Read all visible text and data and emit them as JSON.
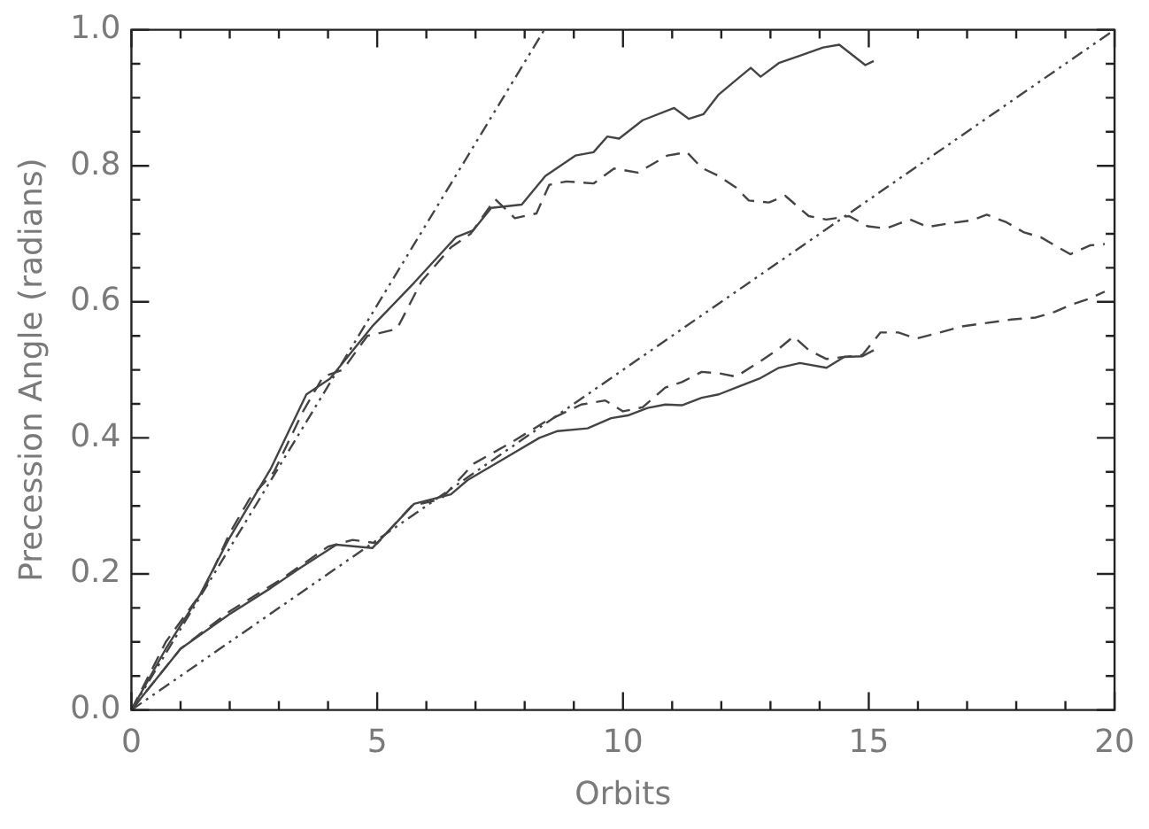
{
  "chart_data": {
    "type": "line",
    "xlabel": "Orbits",
    "ylabel": "Precession Angle (radians)",
    "xlim": [
      0,
      20
    ],
    "ylim": [
      0,
      1.0
    ],
    "xticks": [
      0,
      {
        "value": 1,
        "label": null
      },
      {
        "value": 2,
        "label": null
      },
      {
        "value": 3,
        "label": null
      },
      {
        "value": 4,
        "label": null
      },
      5,
      {
        "value": 6,
        "label": null
      },
      {
        "value": 7,
        "label": null
      },
      {
        "value": 8,
        "label": null
      },
      {
        "value": 9,
        "label": null
      },
      10,
      {
        "value": 11,
        "label": null
      },
      {
        "value": 12,
        "label": null
      },
      {
        "value": 13,
        "label": null
      },
      {
        "value": 14,
        "label": null
      },
      15,
      {
        "value": 16,
        "label": null
      },
      {
        "value": 17,
        "label": null
      },
      {
        "value": 18,
        "label": null
      },
      {
        "value": 19,
        "label": null
      },
      20
    ],
    "yticks": [
      {
        "value": 0,
        "label": "0.0"
      },
      {
        "value": 0.05,
        "label": null
      },
      {
        "value": 0.1,
        "label": null
      },
      {
        "value": 0.15,
        "label": null
      },
      {
        "value": 0.2,
        "label": "0.2"
      },
      {
        "value": 0.25,
        "label": null
      },
      {
        "value": 0.3,
        "label": null
      },
      {
        "value": 0.35,
        "label": null
      },
      {
        "value": 0.4,
        "label": "0.4"
      },
      {
        "value": 0.45,
        "label": null
      },
      {
        "value": 0.5,
        "label": null
      },
      {
        "value": 0.55,
        "label": null
      },
      {
        "value": 0.6,
        "label": "0.6"
      },
      {
        "value": 0.65,
        "label": null
      },
      {
        "value": 0.7,
        "label": null
      },
      {
        "value": 0.75,
        "label": null
      },
      {
        "value": 0.8,
        "label": "0.8"
      },
      {
        "value": 0.85,
        "label": null
      },
      {
        "value": 0.9,
        "label": null
      },
      {
        "value": 0.95,
        "label": null
      },
      {
        "value": 1.0,
        "label": "1.0"
      }
    ],
    "grid": false,
    "legend": false,
    "marker": "none",
    "series": [
      {
        "color": "#444444",
        "line_style": "solid",
        "x": [
          0,
          0.7,
          1.4,
          1.98,
          2.83,
          3.56,
          4.04,
          4.9,
          5.75,
          6.6,
          6.95,
          7.32,
          7.94,
          8.42,
          9.03,
          9.4,
          9.68,
          9.92,
          10.4,
          11.04,
          11.34,
          11.64,
          11.95,
          12.3,
          12.6,
          12.8,
          13.17,
          13.6,
          14.07,
          14.4,
          14.93,
          15.1
        ],
        "values": [
          0,
          0.09,
          0.17,
          0.251,
          0.354,
          0.464,
          0.487,
          0.564,
          0.628,
          0.695,
          0.705,
          0.738,
          0.743,
          0.785,
          0.815,
          0.82,
          0.843,
          0.84,
          0.867,
          0.885,
          0.869,
          0.876,
          0.905,
          0.926,
          0.944,
          0.931,
          0.951,
          0.962,
          0.974,
          0.978,
          0.948,
          0.954
        ]
      },
      {
        "color": "#444444",
        "line_style": "dashed",
        "x": [
          0,
          0.7,
          1.5,
          2,
          2.4,
          2.9,
          3.5,
          3.9,
          4.3,
          4.8,
          5.4,
          5.9,
          6.5,
          6.9,
          7.4,
          7.8,
          8.24,
          8.5,
          8.85,
          9.4,
          9.82,
          10.3,
          10.9,
          11.3,
          11.6,
          11.95,
          12.3,
          12.56,
          12.97,
          13.3,
          13.78,
          14.14,
          14.6,
          14.98,
          15.35,
          15.84,
          16.2,
          16.6,
          17.1,
          17.4,
          17.8,
          18.16,
          18.5,
          19.1,
          19.5,
          19.8
        ],
        "values": [
          0,
          0.1,
          0.18,
          0.26,
          0.31,
          0.35,
          0.44,
          0.49,
          0.5,
          0.55,
          0.56,
          0.63,
          0.68,
          0.7,
          0.751,
          0.723,
          0.73,
          0.772,
          0.777,
          0.774,
          0.796,
          0.79,
          0.815,
          0.82,
          0.797,
          0.785,
          0.768,
          0.749,
          0.746,
          0.756,
          0.726,
          0.721,
          0.726,
          0.711,
          0.708,
          0.721,
          0.71,
          0.715,
          0.72,
          0.728,
          0.717,
          0.702,
          0.695,
          0.67,
          0.683,
          0.685
        ]
      },
      {
        "color": "#444444",
        "line_style": "dotted",
        "x": [
          0,
          8.4
        ],
        "values": [
          0,
          1.0
        ]
      },
      {
        "color": "#444444",
        "line_style": "solid",
        "x": [
          0,
          1.0,
          1.98,
          2.83,
          3.44,
          4.17,
          4.9,
          5.75,
          6.5,
          6.84,
          7.57,
          8.3,
          8.67,
          9.28,
          9.76,
          10.1,
          10.5,
          10.86,
          11.2,
          11.6,
          11.95,
          12.3,
          12.8,
          13.17,
          13.6,
          14.14,
          14.5,
          14.87,
          15.1
        ],
        "values": [
          0,
          0.09,
          0.14,
          0.179,
          0.209,
          0.243,
          0.238,
          0.303,
          0.317,
          0.338,
          0.369,
          0.4,
          0.41,
          0.414,
          0.429,
          0.433,
          0.444,
          0.449,
          0.448,
          0.459,
          0.464,
          0.474,
          0.488,
          0.503,
          0.51,
          0.503,
          0.519,
          0.52,
          0.529
        ]
      },
      {
        "color": "#444444",
        "line_style": "dashed",
        "x": [
          0,
          1,
          2,
          3,
          4,
          4.5,
          5,
          5.7,
          6.3,
          6.96,
          7.7,
          8.4,
          9.15,
          9.64,
          10.0,
          10.4,
          10.86,
          11.2,
          11.6,
          11.95,
          12.3,
          12.8,
          13.17,
          13.47,
          13.78,
          14.14,
          14.5,
          14.87,
          15.24,
          15.6,
          15.97,
          16.45,
          16.9,
          17.4,
          17.9,
          18.4,
          18.77,
          19.13,
          19.5,
          19.8
        ],
        "values": [
          0,
          0.09,
          0.145,
          0.19,
          0.24,
          0.25,
          0.245,
          0.3,
          0.31,
          0.362,
          0.392,
          0.423,
          0.449,
          0.455,
          0.439,
          0.445,
          0.474,
          0.482,
          0.497,
          0.495,
          0.49,
          0.513,
          0.531,
          0.549,
          0.529,
          0.516,
          0.519,
          0.522,
          0.555,
          0.555,
          0.546,
          0.555,
          0.564,
          0.569,
          0.574,
          0.577,
          0.585,
          0.596,
          0.605,
          0.615
        ]
      },
      {
        "color": "#444444",
        "line_style": "dotted",
        "x": [
          0,
          20
        ],
        "values": [
          0,
          1.0
        ]
      }
    ]
  }
}
